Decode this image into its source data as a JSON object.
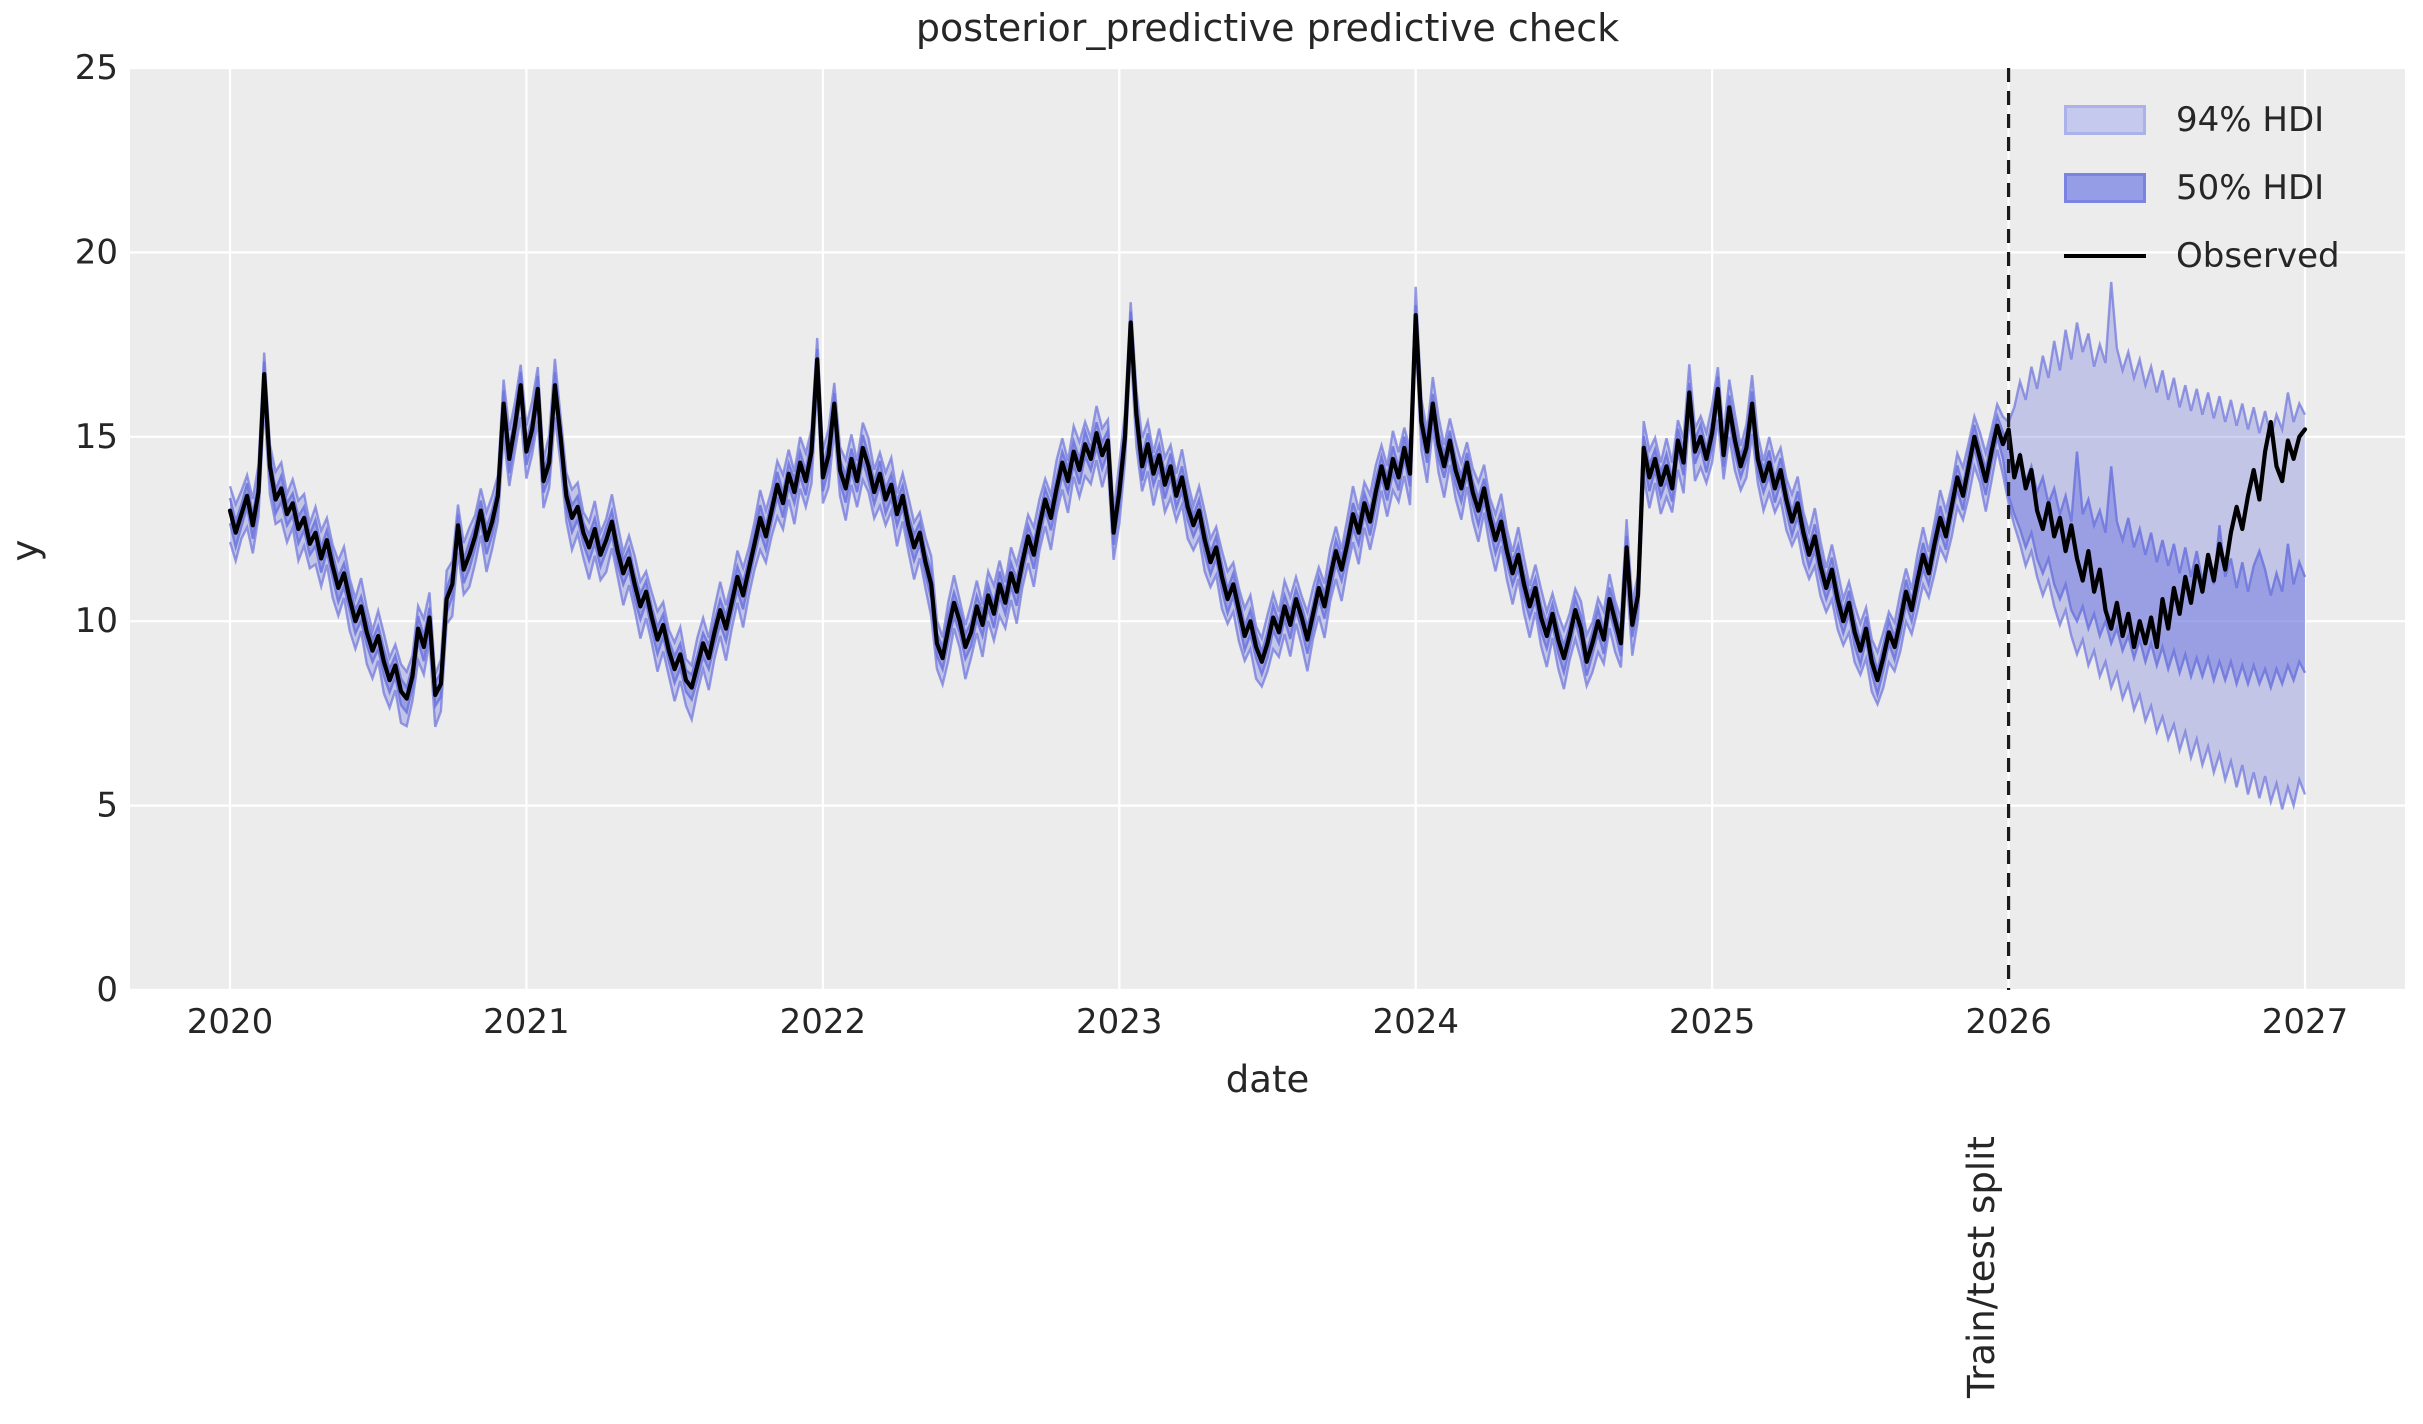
{
  "chart_data": {
    "type": "line",
    "title": "posterior_predictive predictive check",
    "xlabel": "date",
    "ylabel": "y",
    "xticks": [
      2020,
      2021,
      2022,
      2023,
      2024,
      2025,
      2026,
      2027
    ],
    "yticks": [
      0,
      5,
      10,
      15,
      20,
      25
    ],
    "ylim": [
      0,
      25
    ],
    "xlim": [
      2019.662,
      2027.338
    ],
    "grid": true,
    "legend_position": "upper right",
    "legend": [
      {
        "label": "94% HDI",
        "type": "band",
        "fill": "#c6c9ee",
        "edge": "#abb1e9"
      },
      {
        "label": "50% HDI",
        "type": "band",
        "fill": "#969de7",
        "edge": "#7a83e2"
      },
      {
        "label": "Observed",
        "type": "line",
        "color": "#000000"
      }
    ],
    "split": {
      "x": 2026.0,
      "label": "Train/test split"
    },
    "colors": {
      "axes_background": "#ececec",
      "grid": "#ffffff",
      "band_base": "#6c74dd",
      "observed": "#000000",
      "split_line": "#1a1a1a",
      "text": "#262626"
    },
    "x_start": 2020.0,
    "x_step": 0.01923076923,
    "observed": [
      13.0,
      12.4,
      12.9,
      13.4,
      12.6,
      13.5,
      16.7,
      14.2,
      13.3,
      13.6,
      12.9,
      13.2,
      12.5,
      12.8,
      12.1,
      12.4,
      11.7,
      12.2,
      11.5,
      10.9,
      11.3,
      10.6,
      10.0,
      10.4,
      9.7,
      9.2,
      9.6,
      8.9,
      8.4,
      8.8,
      8.1,
      7.9,
      8.5,
      9.8,
      9.3,
      10.1,
      8.0,
      8.3,
      10.6,
      11.0,
      12.6,
      11.4,
      11.8,
      12.3,
      13.0,
      12.2,
      12.7,
      13.4,
      15.9,
      14.4,
      15.3,
      16.4,
      14.6,
      15.2,
      16.3,
      13.8,
      14.3,
      16.4,
      15.0,
      13.4,
      12.8,
      13.1,
      12.4,
      12.0,
      12.5,
      11.8,
      12.2,
      12.7,
      11.9,
      11.3,
      11.7,
      11.0,
      10.4,
      10.8,
      10.1,
      9.5,
      9.9,
      9.2,
      8.7,
      9.1,
      8.4,
      8.2,
      8.8,
      9.4,
      9.0,
      9.7,
      10.3,
      9.8,
      10.5,
      11.2,
      10.7,
      11.4,
      12.1,
      12.8,
      12.3,
      13.0,
      13.7,
      13.2,
      14.0,
      13.5,
      14.3,
      13.8,
      14.6,
      17.1,
      13.9,
      14.5,
      15.9,
      14.1,
      13.6,
      14.4,
      13.8,
      14.7,
      14.2,
      13.5,
      14.0,
      13.3,
      13.7,
      12.9,
      13.4,
      12.6,
      12.0,
      12.4,
      11.6,
      11.0,
      9.4,
      9.0,
      9.8,
      10.5,
      10.0,
      9.3,
      9.7,
      10.4,
      9.9,
      10.7,
      10.2,
      11.0,
      10.5,
      11.3,
      10.8,
      11.6,
      12.3,
      11.8,
      12.6,
      13.3,
      12.8,
      13.6,
      14.3,
      13.8,
      14.6,
      14.1,
      14.8,
      14.4,
      15.1,
      14.5,
      14.9,
      12.4,
      13.5,
      15.0,
      18.1,
      15.6,
      14.2,
      14.8,
      14.0,
      14.5,
      13.7,
      14.2,
      13.4,
      13.9,
      13.1,
      12.6,
      13.0,
      12.2,
      11.6,
      12.0,
      11.2,
      10.6,
      11.0,
      10.3,
      9.6,
      10.0,
      9.3,
      8.9,
      9.4,
      10.1,
      9.7,
      10.4,
      9.9,
      10.6,
      10.1,
      9.5,
      10.2,
      10.9,
      10.4,
      11.2,
      11.9,
      11.4,
      12.1,
      12.9,
      12.4,
      13.2,
      12.7,
      13.5,
      14.2,
      13.6,
      14.4,
      13.9,
      14.7,
      14.0,
      18.3,
      15.4,
      14.6,
      15.9,
      14.8,
      14.2,
      14.9,
      14.1,
      13.6,
      14.3,
      13.5,
      13.0,
      13.6,
      12.8,
      12.2,
      12.7,
      11.9,
      11.3,
      11.8,
      11.0,
      10.4,
      10.9,
      10.1,
      9.6,
      10.2,
      9.5,
      9.0,
      9.6,
      10.3,
      9.8,
      8.9,
      9.4,
      10.0,
      9.5,
      10.6,
      10.0,
      9.4,
      12.0,
      9.9,
      10.7,
      14.7,
      13.9,
      14.4,
      13.7,
      14.2,
      13.6,
      14.9,
      14.3,
      16.2,
      14.6,
      15.0,
      14.4,
      15.1,
      16.3,
      14.5,
      15.8,
      14.9,
      14.2,
      14.7,
      15.9,
      14.4,
      13.8,
      14.3,
      13.6,
      14.1,
      13.3,
      12.7,
      13.2,
      12.4,
      11.8,
      12.3,
      11.5,
      10.9,
      11.4,
      10.6,
      10.0,
      10.5,
      9.7,
      9.2,
      9.8,
      8.9,
      8.4,
      9.0,
      9.7,
      9.3,
      10.0,
      10.8,
      10.3,
      11.1,
      11.8,
      11.3,
      12.1,
      12.8,
      12.3,
      13.1,
      13.9,
      13.4,
      14.2,
      15.0,
      14.4,
      13.8,
      14.6,
      15.3,
      14.8,
      15.2,
      13.9,
      14.5,
      13.6,
      14.1,
      13.0,
      12.5,
      13.2,
      12.3,
      12.8,
      11.9,
      12.6,
      11.7,
      11.1,
      11.9,
      10.8,
      11.4,
      10.3,
      9.8,
      10.5,
      9.6,
      10.2,
      9.3,
      10.0,
      9.4,
      10.1,
      9.3,
      10.6,
      9.8,
      10.9,
      10.2,
      11.2,
      10.5,
      11.5,
      10.8,
      11.8,
      11.1,
      12.1,
      11.4,
      12.4,
      13.1,
      12.5,
      13.4,
      14.1,
      13.3,
      14.6,
      15.4,
      14.2,
      13.8,
      14.9,
      14.4,
      15.0,
      15.2
    ],
    "train_band_offsets": {
      "hi94": 0.55,
      "lo94": 0.65,
      "hi50": 0.26,
      "lo50": 0.3,
      "wiggle": 0.22
    },
    "forecast": {
      "x_start": 2026.0,
      "start_index": 312,
      "hdi94_hi": [
        15.4,
        15.8,
        16.5,
        16.0,
        16.9,
        16.3,
        17.2,
        16.6,
        17.6,
        16.8,
        17.9,
        17.1,
        18.1,
        17.3,
        17.8,
        16.9,
        17.5,
        17.0,
        19.2,
        17.4,
        16.8,
        17.3,
        16.6,
        17.1,
        16.4,
        16.9,
        16.2,
        16.8,
        16.0,
        16.6,
        15.8,
        16.4,
        15.7,
        16.3,
        15.6,
        16.2,
        15.5,
        16.1,
        15.4,
        16.0,
        15.3,
        15.9,
        15.2,
        15.8,
        15.1,
        15.7,
        15.0,
        15.6,
        15.2,
        16.2,
        15.4,
        15.9,
        15.6
      ],
      "hdi94_lo": [
        13.2,
        12.6,
        12.1,
        11.5,
        11.9,
        11.2,
        10.7,
        11.1,
        10.4,
        9.9,
        10.3,
        9.6,
        9.1,
        9.5,
        8.8,
        9.2,
        8.5,
        8.9,
        8.2,
        8.6,
        7.9,
        8.3,
        7.6,
        8.0,
        7.3,
        7.7,
        7.0,
        7.4,
        6.8,
        7.2,
        6.5,
        7.0,
        6.3,
        6.8,
        6.1,
        6.6,
        5.9,
        6.4,
        5.7,
        6.2,
        5.5,
        6.1,
        5.3,
        5.9,
        5.2,
        5.8,
        5.1,
        5.6,
        4.9,
        5.5,
        5.0,
        5.7,
        5.3
      ],
      "hdi50_hi": [
        14.8,
        14.1,
        14.5,
        13.8,
        14.2,
        13.5,
        13.9,
        13.2,
        13.6,
        12.9,
        13.4,
        12.7,
        14.6,
        12.9,
        13.3,
        12.6,
        13.0,
        12.4,
        14.2,
        12.7,
        12.2,
        12.8,
        12.0,
        12.5,
        11.8,
        12.4,
        11.6,
        12.2,
        11.5,
        12.1,
        11.3,
        12.0,
        11.2,
        11.9,
        11.1,
        11.8,
        11.0,
        12.6,
        11.2,
        11.7,
        10.9,
        11.6,
        10.8,
        11.5,
        11.9,
        11.4,
        10.7,
        11.3,
        10.8,
        12.1,
        11.0,
        11.6,
        11.2
      ],
      "hdi50_lo": [
        13.4,
        12.9,
        12.5,
        12.0,
        12.4,
        11.7,
        11.3,
        11.7,
        11.0,
        10.6,
        11.0,
        10.3,
        10.0,
        10.4,
        9.8,
        10.2,
        9.6,
        10.0,
        9.4,
        9.8,
        9.2,
        9.6,
        9.0,
        9.5,
        8.9,
        9.4,
        8.8,
        9.3,
        8.7,
        9.2,
        8.6,
        9.1,
        8.5,
        9.0,
        8.5,
        9.0,
        8.4,
        8.9,
        8.4,
        8.9,
        8.3,
        8.8,
        8.3,
        8.8,
        8.3,
        8.7,
        8.2,
        8.7,
        8.3,
        8.8,
        8.4,
        8.9,
        8.6
      ]
    }
  }
}
